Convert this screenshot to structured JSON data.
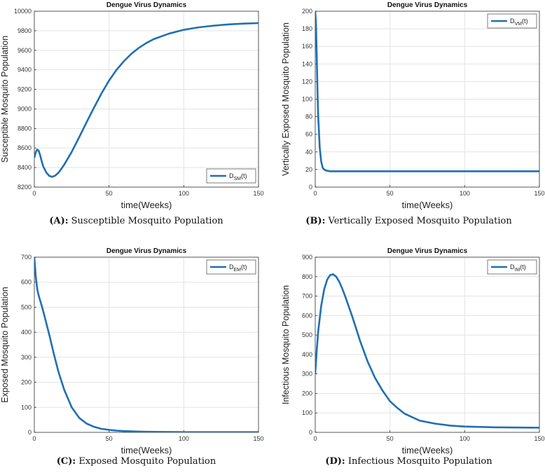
{
  "chart_data": [
    {
      "type": "line",
      "title": "Dengue Virus Dynamics",
      "xlabel": "time(Weeks)",
      "ylabel": "Susceptible Mosquito Population",
      "xlim": [
        0,
        150
      ],
      "ylim": [
        8200,
        10000
      ],
      "xticks": [
        0,
        50,
        100,
        150
      ],
      "yticks": [
        8200,
        8400,
        8600,
        8800,
        9000,
        9200,
        9400,
        9600,
        9800,
        10000
      ],
      "grid": true,
      "legend_position": "bottom-right",
      "legend": {
        "main": "D",
        "sub": "SM",
        "suffix": "(t)"
      },
      "color": "#1f6fb4",
      "caption": {
        "label": "(A):",
        "text": "Susceptible Mosquito Population"
      },
      "x": [
        0,
        1,
        2,
        3,
        4,
        5,
        6,
        8,
        10,
        12,
        14,
        16,
        18,
        20,
        25,
        30,
        35,
        40,
        45,
        50,
        55,
        60,
        65,
        70,
        75,
        80,
        90,
        100,
        110,
        120,
        130,
        140,
        150
      ],
      "y": [
        8500,
        8560,
        8585,
        8570,
        8520,
        8460,
        8410,
        8350,
        8315,
        8305,
        8318,
        8345,
        8385,
        8430,
        8560,
        8710,
        8865,
        9015,
        9160,
        9290,
        9400,
        9490,
        9565,
        9625,
        9675,
        9715,
        9770,
        9810,
        9835,
        9852,
        9865,
        9873,
        9878
      ]
    },
    {
      "type": "line",
      "title": "Dengue Virus Dynamics",
      "xlabel": "time(Weeks)",
      "ylabel": "Vertically Exposed Mosquito Population",
      "xlim": [
        0,
        150
      ],
      "ylim": [
        0,
        200
      ],
      "xticks": [
        0,
        50,
        100,
        150
      ],
      "yticks": [
        0,
        20,
        40,
        60,
        80,
        100,
        120,
        140,
        160,
        180,
        200
      ],
      "grid": true,
      "legend_position": "top-right",
      "legend": {
        "main": "D",
        "sub": "VM",
        "suffix": "(t)"
      },
      "color": "#1f6fb4",
      "caption": {
        "label": "(B):",
        "text": "Vertically Exposed Mosquito Population"
      },
      "x": [
        0,
        0.5,
        1,
        1.5,
        2,
        3,
        4,
        5,
        6,
        7,
        8,
        10,
        12,
        15,
        20,
        50,
        100,
        150
      ],
      "y": [
        200,
        185,
        150,
        110,
        80,
        45,
        29,
        22,
        20,
        19,
        18.5,
        18,
        18,
        18,
        18,
        18,
        18,
        18
      ]
    },
    {
      "type": "line",
      "title": "Dengue Virus Dynamics",
      "xlabel": "time(Weeks)",
      "ylabel": "Exposed Mosquito Population",
      "xlim": [
        0,
        150
      ],
      "ylim": [
        0,
        700
      ],
      "xticks": [
        0,
        50,
        100,
        150
      ],
      "yticks": [
        0,
        100,
        200,
        300,
        400,
        500,
        600,
        700
      ],
      "grid": true,
      "legend_position": "top-right",
      "legend": {
        "main": "D",
        "sub": "EM",
        "suffix": "(t)"
      },
      "color": "#1f6fb4",
      "caption": {
        "label": "(C):",
        "text": "Exposed Mosquito Population"
      },
      "x": [
        0,
        1,
        2,
        3,
        5,
        7,
        10,
        13,
        16,
        20,
        25,
        30,
        35,
        40,
        45,
        50,
        55,
        60,
        70,
        80,
        100,
        120,
        150
      ],
      "y": [
        700,
        620,
        570,
        545,
        505,
        460,
        390,
        315,
        245,
        170,
        100,
        58,
        35,
        22,
        14,
        10,
        7,
        5,
        3,
        2,
        1,
        1,
        1
      ]
    },
    {
      "type": "line",
      "title": "Dengue Virus Dynamics",
      "xlabel": "time(Weeks)",
      "ylabel": "Infectious Mosquito Population",
      "xlim": [
        0,
        150
      ],
      "ylim": [
        0,
        900
      ],
      "xticks": [
        0,
        50,
        100,
        150
      ],
      "yticks": [
        0,
        100,
        200,
        300,
        400,
        500,
        600,
        700,
        800,
        900
      ],
      "grid": true,
      "legend_position": "top-right",
      "legend": {
        "main": "D",
        "sub": "IM",
        "suffix": "(t)"
      },
      "color": "#1f6fb4",
      "caption": {
        "label": "(D):",
        "text": "Infectious Mosquito Population"
      },
      "x": [
        0,
        1,
        2,
        4,
        6,
        8,
        10,
        12,
        14,
        16,
        18,
        20,
        25,
        30,
        35,
        40,
        45,
        50,
        55,
        60,
        70,
        80,
        90,
        100,
        120,
        150
      ],
      "y": [
        300,
        420,
        520,
        650,
        735,
        785,
        808,
        812,
        800,
        775,
        740,
        700,
        590,
        470,
        365,
        280,
        215,
        160,
        125,
        95,
        60,
        45,
        35,
        30,
        26,
        24
      ]
    }
  ]
}
